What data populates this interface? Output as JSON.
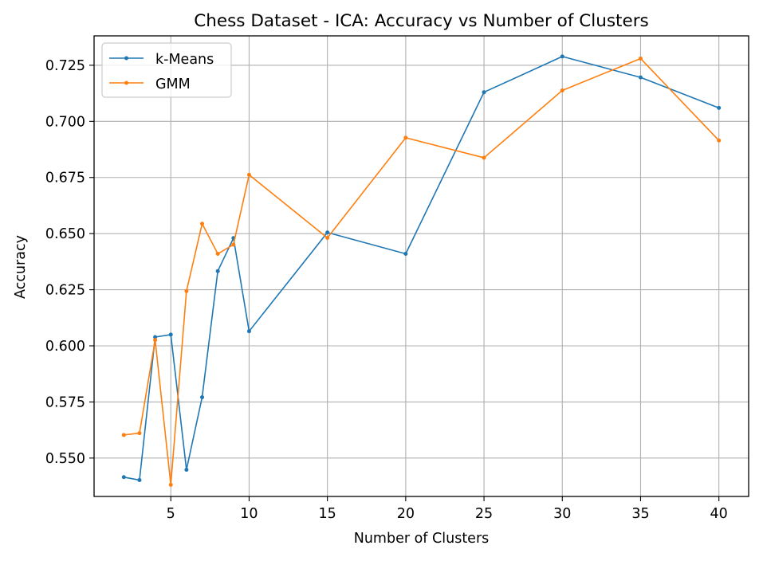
{
  "chart_data": {
    "type": "line",
    "title": "Chess Dataset - ICA: Accuracy vs Number of Clusters",
    "xlabel": "Number of Clusters",
    "ylabel": "Accuracy",
    "xlim": [
      0.1,
      41.9
    ],
    "ylim": [
      0.5329,
      0.7381
    ],
    "xticks": [
      5,
      10,
      15,
      20,
      25,
      30,
      35,
      40
    ],
    "xtick_labels": [
      "5",
      "10",
      "15",
      "20",
      "25",
      "30",
      "35",
      "40"
    ],
    "yticks": [
      0.55,
      0.575,
      0.6,
      0.625,
      0.65,
      0.675,
      0.7,
      0.725
    ],
    "ytick_labels": [
      "0.550",
      "0.575",
      "0.600",
      "0.625",
      "0.650",
      "0.675",
      "0.700",
      "0.725"
    ],
    "grid": true,
    "legend_position": "top-left",
    "x": [
      2,
      3,
      4,
      5,
      6,
      7,
      8,
      9,
      10,
      15,
      20,
      25,
      30,
      35,
      40
    ],
    "series": [
      {
        "name": "k-Means",
        "color": "#1f77b4",
        "values": [
          0.5415,
          0.5402,
          0.6039,
          0.605,
          0.5448,
          0.5771,
          0.6333,
          0.648,
          0.6065,
          0.6505,
          0.641,
          0.713,
          0.7289,
          0.7196,
          0.706
        ]
      },
      {
        "name": "GMM",
        "color": "#ff7f0e",
        "values": [
          0.5603,
          0.5611,
          0.6026,
          0.5381,
          0.6244,
          0.6544,
          0.641,
          0.6451,
          0.6762,
          0.6481,
          0.6927,
          0.6838,
          0.7138,
          0.728,
          0.6915
        ]
      }
    ]
  }
}
